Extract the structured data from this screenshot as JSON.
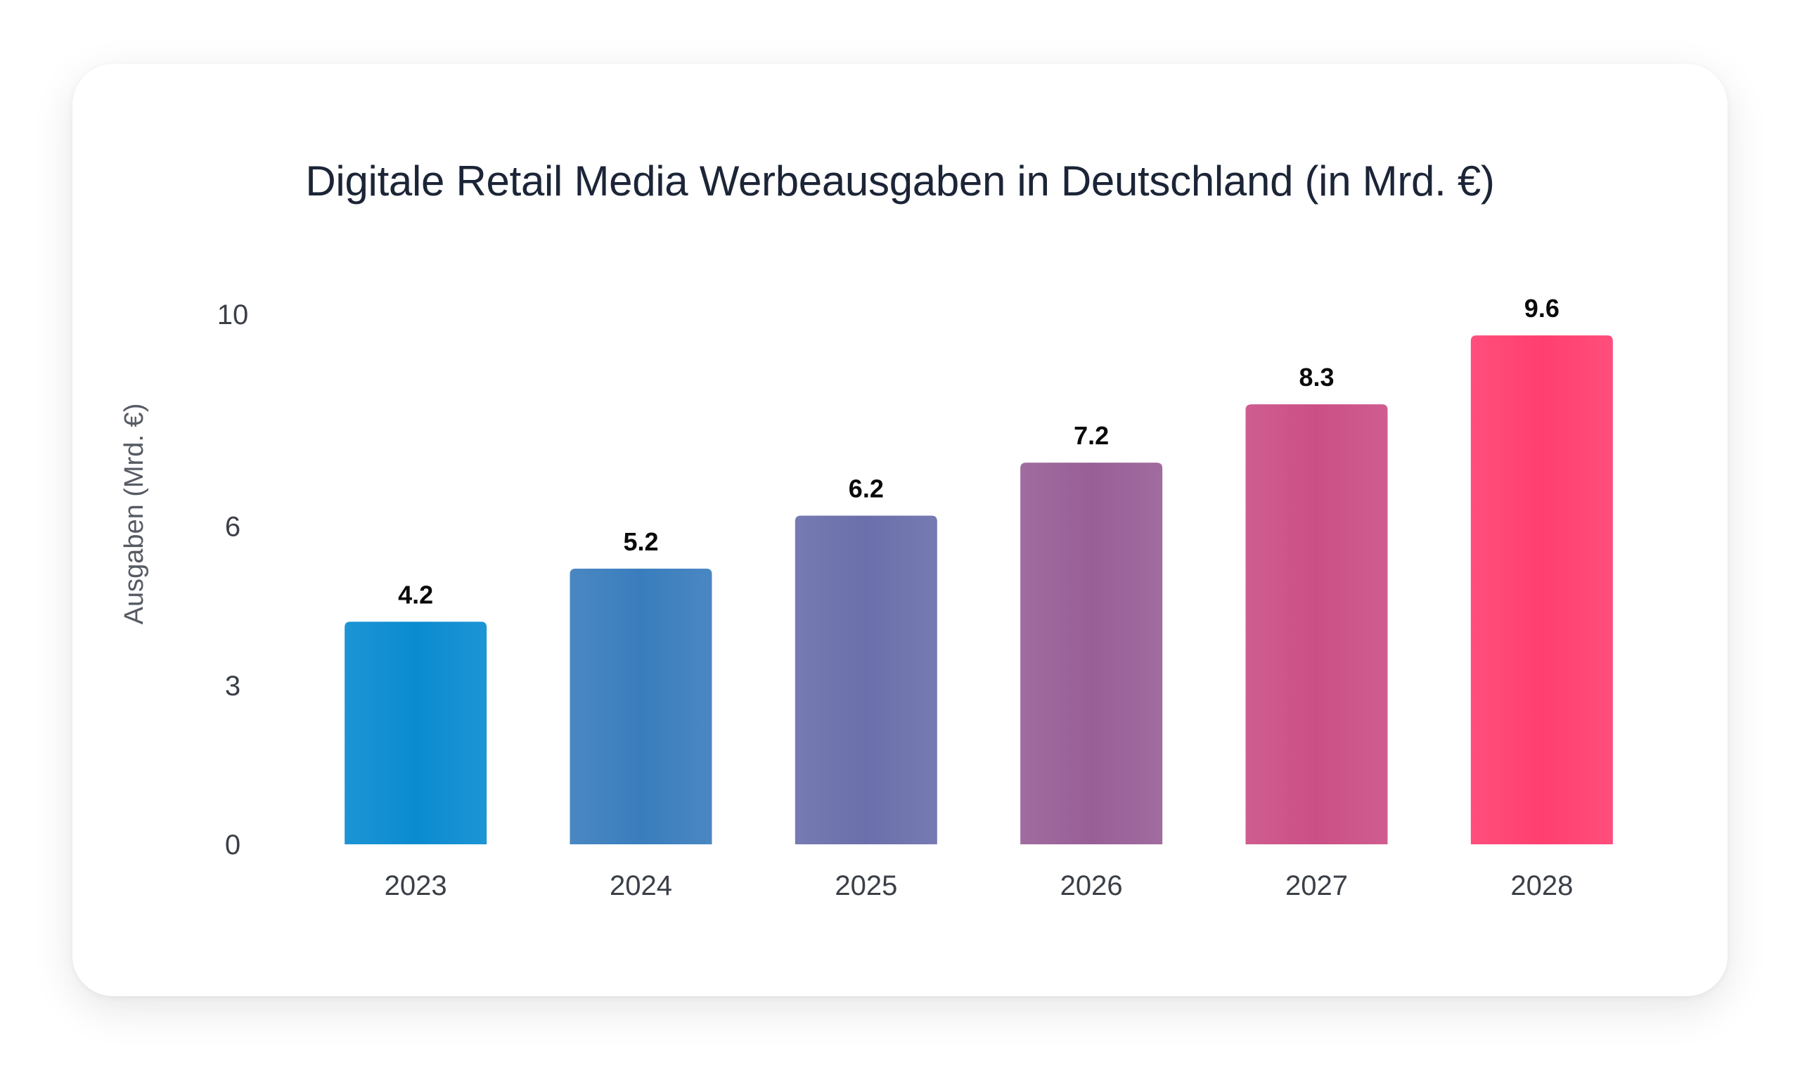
{
  "chart_data": {
    "type": "bar",
    "title": "Digitale Retail Media Werbeausgaben in Deutschland (in Mrd. €)",
    "xlabel": "",
    "ylabel": "Ausgaben (Mrd. €)",
    "categories": [
      "2023",
      "2024",
      "2025",
      "2026",
      "2027",
      "2028"
    ],
    "values": [
      4.2,
      5.2,
      6.2,
      7.2,
      8.3,
      9.6
    ],
    "data_labels": [
      "4.2",
      "5.2",
      "6.2",
      "7.2",
      "8.3",
      "9.6"
    ],
    "yticks": [
      0,
      3,
      6,
      10
    ],
    "ytick_labels": [
      "0",
      "3",
      "6",
      "10"
    ],
    "ylim": [
      0,
      10
    ],
    "grid": false,
    "legend": "none",
    "colors": [
      "#0a8bd0",
      "#3a7dbd",
      "#6b6fab",
      "#985f97",
      "#cb4f86",
      "#ff3f70"
    ]
  }
}
